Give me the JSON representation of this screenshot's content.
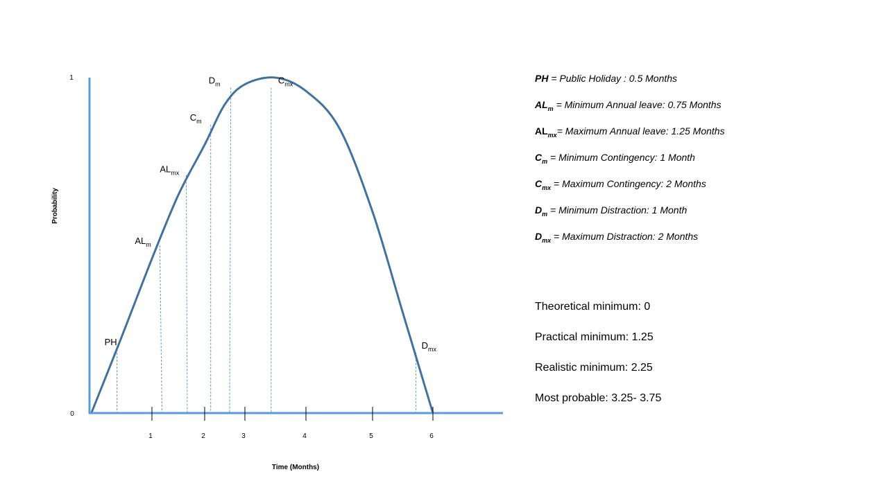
{
  "chart_data": {
    "type": "line",
    "title": "",
    "xlabel": "Time (Months)",
    "ylabel": "Probability",
    "x_ticks": [
      1,
      2,
      3,
      4,
      5,
      6
    ],
    "y_ticks": [
      0,
      1
    ],
    "xlim": [
      0,
      6.8
    ],
    "ylim": [
      0,
      1
    ],
    "grid": false,
    "curve": {
      "x": [
        0.03,
        0.5,
        1.0,
        1.5,
        2.0,
        2.5,
        3.0,
        3.5,
        4.0,
        4.5,
        5.0,
        5.5,
        6.0
      ],
      "y": [
        0.0,
        0.22,
        0.46,
        0.65,
        0.8,
        0.92,
        0.98,
        1.0,
        0.96,
        0.85,
        0.6,
        0.3,
        0.0
      ]
    },
    "markers": [
      {
        "label": "PH",
        "sub": "",
        "x_top": 0.44,
        "x_base": 0.44,
        "y": 0.19
      },
      {
        "label": "AL",
        "sub": "m",
        "x_top": 1.15,
        "x_base": 1.19,
        "y": 0.5
      },
      {
        "label": "AL",
        "sub": "mx",
        "x_top": 1.65,
        "x_base": 1.67,
        "y": 0.71
      },
      {
        "label": "C",
        "sub": "m",
        "x_top": 2.15,
        "x_base": 2.15,
        "y": 0.86
      },
      {
        "label": "D",
        "sub": "m",
        "x_top": 2.65,
        "x_base": 2.62,
        "y": 0.97
      },
      {
        "label": "C",
        "sub": "mx",
        "x_top": 3.43,
        "x_base": 3.43,
        "y": 0.97
      },
      {
        "label": "D",
        "sub": "mx",
        "x_top": 5.72,
        "x_base": 5.72,
        "y": 0.18
      }
    ],
    "colors": {
      "curve": "#41719c",
      "axis": "#5b9bd5",
      "guide": "#5b9bd5"
    }
  },
  "legend": [
    {
      "sym": "PH",
      "sub": "",
      "text": " = Public Holiday : 0.5 Months",
      "plain": false
    },
    {
      "sym": "AL",
      "sub": "m",
      "text": " = Minimum Annual leave: 0.75 Months",
      "plain": false
    },
    {
      "sym": "AL",
      "sub": "mx",
      "text": "= Maximum Annual leave: 1.25 Months",
      "plain": true
    },
    {
      "sym": "C",
      "sub": "m",
      "text": " = Minimum Contingency: 1 Month",
      "plain": false
    },
    {
      "sym": "C",
      "sub": "mx",
      "text": " = Maximum Contingency: 2 Months",
      "plain": false
    },
    {
      "sym": "D",
      "sub": "m",
      "text": " = Minimum Distraction: 1 Month",
      "plain": false
    },
    {
      "sym": "D",
      "sub": "mx",
      "text": " = Maximum Distraction: 2 Months",
      "plain": false
    }
  ],
  "stats": [
    "Theoretical minimum: 0",
    "Practical minimum: 1.25",
    "Realistic minimum: 2.25",
    "Most probable: 3.25- 3.75"
  ]
}
